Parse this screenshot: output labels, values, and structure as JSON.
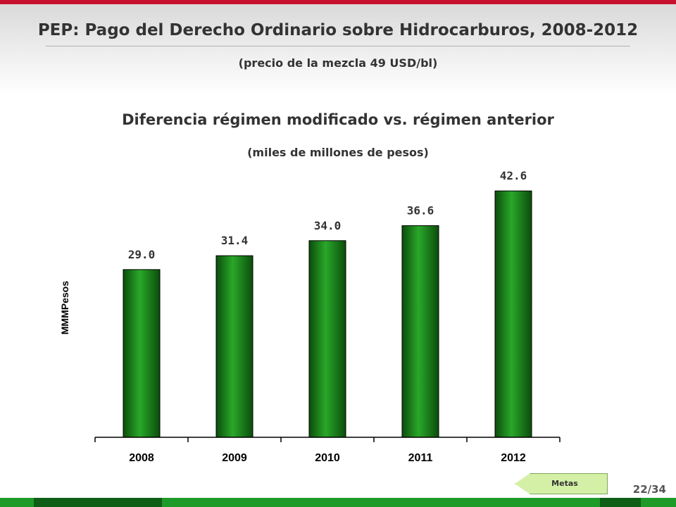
{
  "slide": {
    "title": "PEP: Pago del Derecho Ordinario sobre Hidrocarburos, 2008-2012",
    "subtitle": "(precio de la mezcla 49 USD/bl)",
    "page_number": "22/34",
    "metas_button": "Metas"
  },
  "colors": {
    "accent": "#c8102e",
    "bar": "#1a8a1a",
    "footer": "#1e9a28"
  },
  "chart_data": {
    "type": "bar",
    "title": "Diferencia régimen modificado vs. régimen anterior",
    "subtitle": "(miles de millones de pesos)",
    "xlabel": "",
    "ylabel": "MMMPesos",
    "categories": [
      "2008",
      "2009",
      "2010",
      "2011",
      "2012"
    ],
    "values": [
      29.0,
      31.4,
      34.0,
      36.6,
      42.6
    ],
    "value_labels": [
      "29.0",
      "31.4",
      "34.0",
      "36.6",
      "42.6"
    ],
    "ylim": [
      0,
      47
    ],
    "grid": false,
    "legend": "none"
  }
}
